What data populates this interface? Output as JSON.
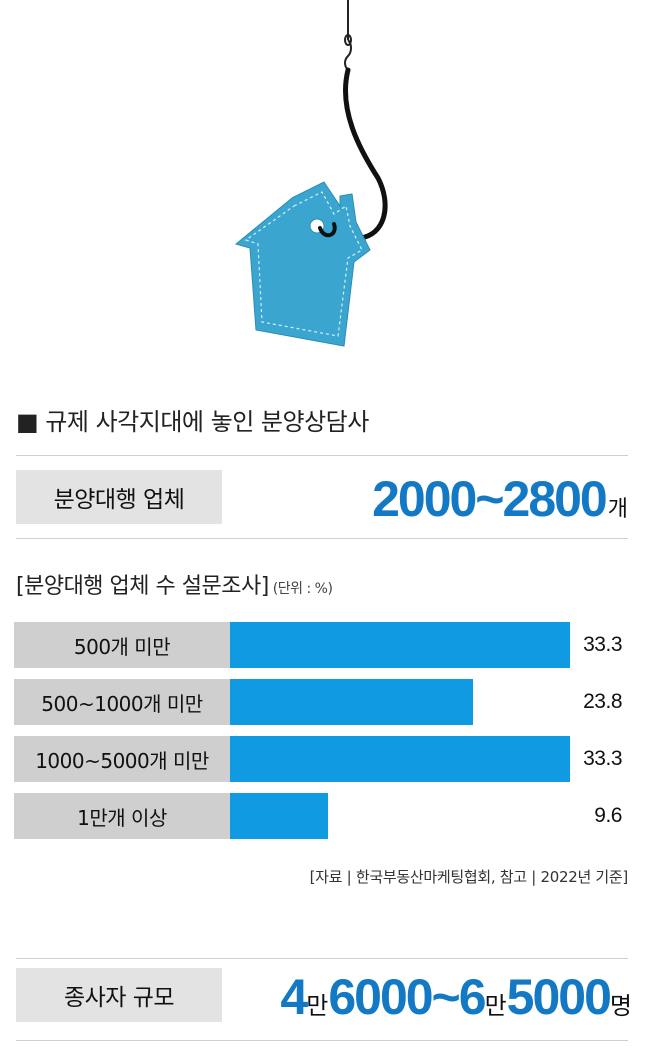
{
  "section_title": "■ 규제 사각지대에 놓인 분양상담사",
  "agency": {
    "label": "분양대행 업체",
    "range": "2000~2800",
    "unit": "개"
  },
  "survey": {
    "title": "[분양대행 업체 수 설문조사]",
    "unit_note": "(단위 : %)"
  },
  "chart_data": {
    "type": "bar",
    "orientation": "horizontal",
    "title": "[분양대행 업체 수 설문조사]",
    "unit": "(단위 : %)",
    "categories": [
      "500개 미만",
      "500~1000개 미만",
      "1000~5000개 미만",
      "1만개 이상"
    ],
    "values": [
      33.3,
      23.8,
      33.3,
      9.6
    ],
    "value_labels": [
      "33.3",
      "23.8",
      "33.3",
      "9.6"
    ],
    "xlim": [
      0,
      33.3
    ],
    "bar_color": "#0f9ae2",
    "category_bg": "#cfcfcf"
  },
  "source": "[자료 | 한국부동산마케팅협회, 참고 | 2022년 기준]",
  "employees": {
    "label": "종사자 규모",
    "parts": [
      "4",
      "만",
      "6000~6",
      "만",
      "5000",
      "명"
    ]
  },
  "colors": {
    "accent": "#1479c4",
    "tag": "#3aa6d0"
  }
}
